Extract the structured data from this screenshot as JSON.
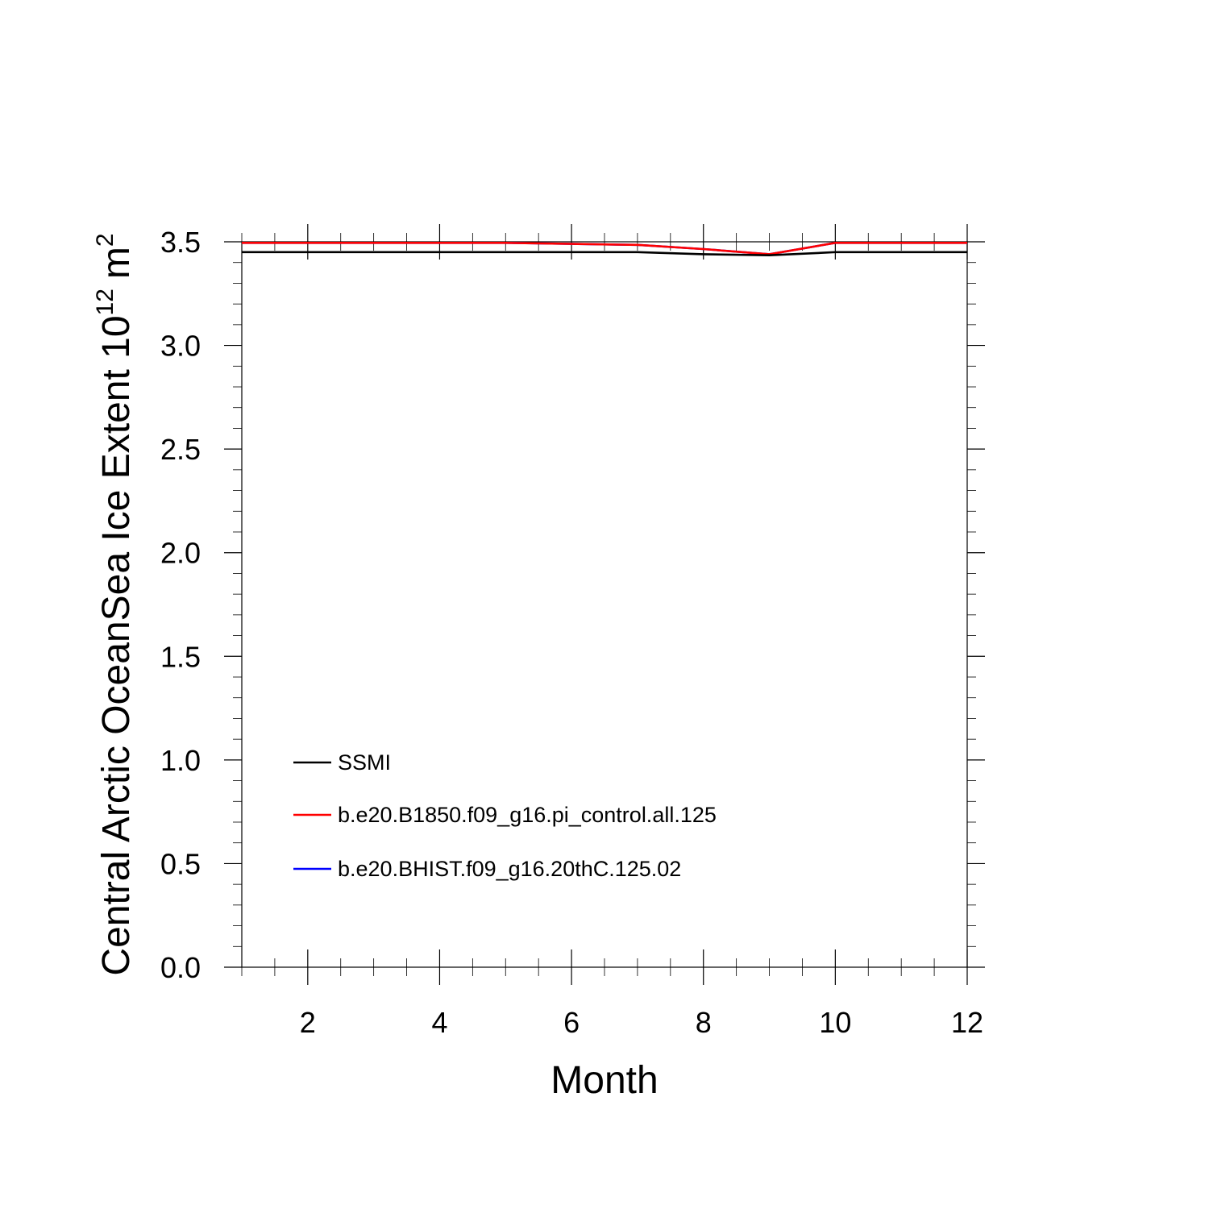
{
  "chart_data": {
    "type": "line",
    "xlabel": "Month",
    "ylabel": {
      "text": "Central Arctic OceanSea Ice Extent 10",
      "exponent": "12",
      "unit": "m",
      "unit_exponent": "2"
    },
    "xlim": [
      1,
      12
    ],
    "ylim": [
      0,
      3.5
    ],
    "xticks": [
      2,
      4,
      6,
      8,
      10,
      12
    ],
    "yticks": [
      0.0,
      0.5,
      1.0,
      1.5,
      2.0,
      2.5,
      3.0,
      3.5
    ],
    "ytick_labels": [
      "0.0",
      "0.5",
      "1.0",
      "1.5",
      "2.0",
      "2.5",
      "3.0",
      "3.5"
    ],
    "x": [
      1,
      2,
      3,
      4,
      5,
      6,
      7,
      8,
      9,
      10,
      11,
      12
    ],
    "series": [
      {
        "name": "SSMI",
        "color": "#000000",
        "values": [
          3.45,
          3.45,
          3.45,
          3.45,
          3.45,
          3.45,
          3.45,
          3.44,
          3.435,
          3.45,
          3.45,
          3.45
        ]
      },
      {
        "name": "b.e20.B1850.f09_g16.pi_control.all.125",
        "color": "#ff0000",
        "values": [
          3.495,
          3.495,
          3.495,
          3.495,
          3.495,
          3.49,
          3.485,
          3.465,
          3.44,
          3.495,
          3.495,
          3.495
        ]
      },
      {
        "name": "b.e20.BHIST.f09_g16.20thC.125.02",
        "color": "#0000ff",
        "values": [
          3.495,
          3.495,
          3.495,
          3.495,
          3.495,
          3.49,
          3.485,
          3.465,
          3.44,
          3.495,
          3.495,
          3.495
        ]
      }
    ],
    "legend_location": "lower-left",
    "grid": false
  }
}
